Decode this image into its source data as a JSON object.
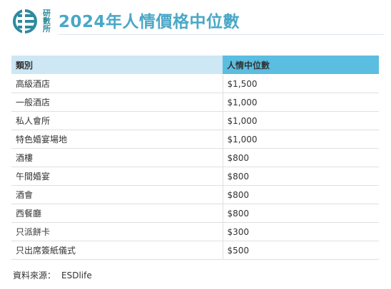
{
  "header": {
    "logo_text": "研數所",
    "title": "2024年人情價格中位數"
  },
  "table": {
    "columns": [
      "類別",
      "人情中位數"
    ],
    "rows": [
      [
        "高級酒店",
        "$1,500"
      ],
      [
        "一般酒店",
        "$1,000"
      ],
      [
        "私人會所",
        "$1,000"
      ],
      [
        "特色婚宴場地",
        "$1,000"
      ],
      [
        "酒樓",
        "$800"
      ],
      [
        "午間婚宴",
        "$800"
      ],
      [
        "酒會",
        "$800"
      ],
      [
        "西餐廳",
        "$800"
      ],
      [
        "只派餅卡",
        "$300"
      ],
      [
        "只出席簽紙儀式",
        "$500"
      ]
    ]
  },
  "source": {
    "label": "資料來源：",
    "value": "ESDlife"
  },
  "colors": {
    "title": "#4aa7c7",
    "header_bg": "#cde7f4",
    "header_highlight_bg": "#5bbde0",
    "logo": "#2e8a9e"
  }
}
